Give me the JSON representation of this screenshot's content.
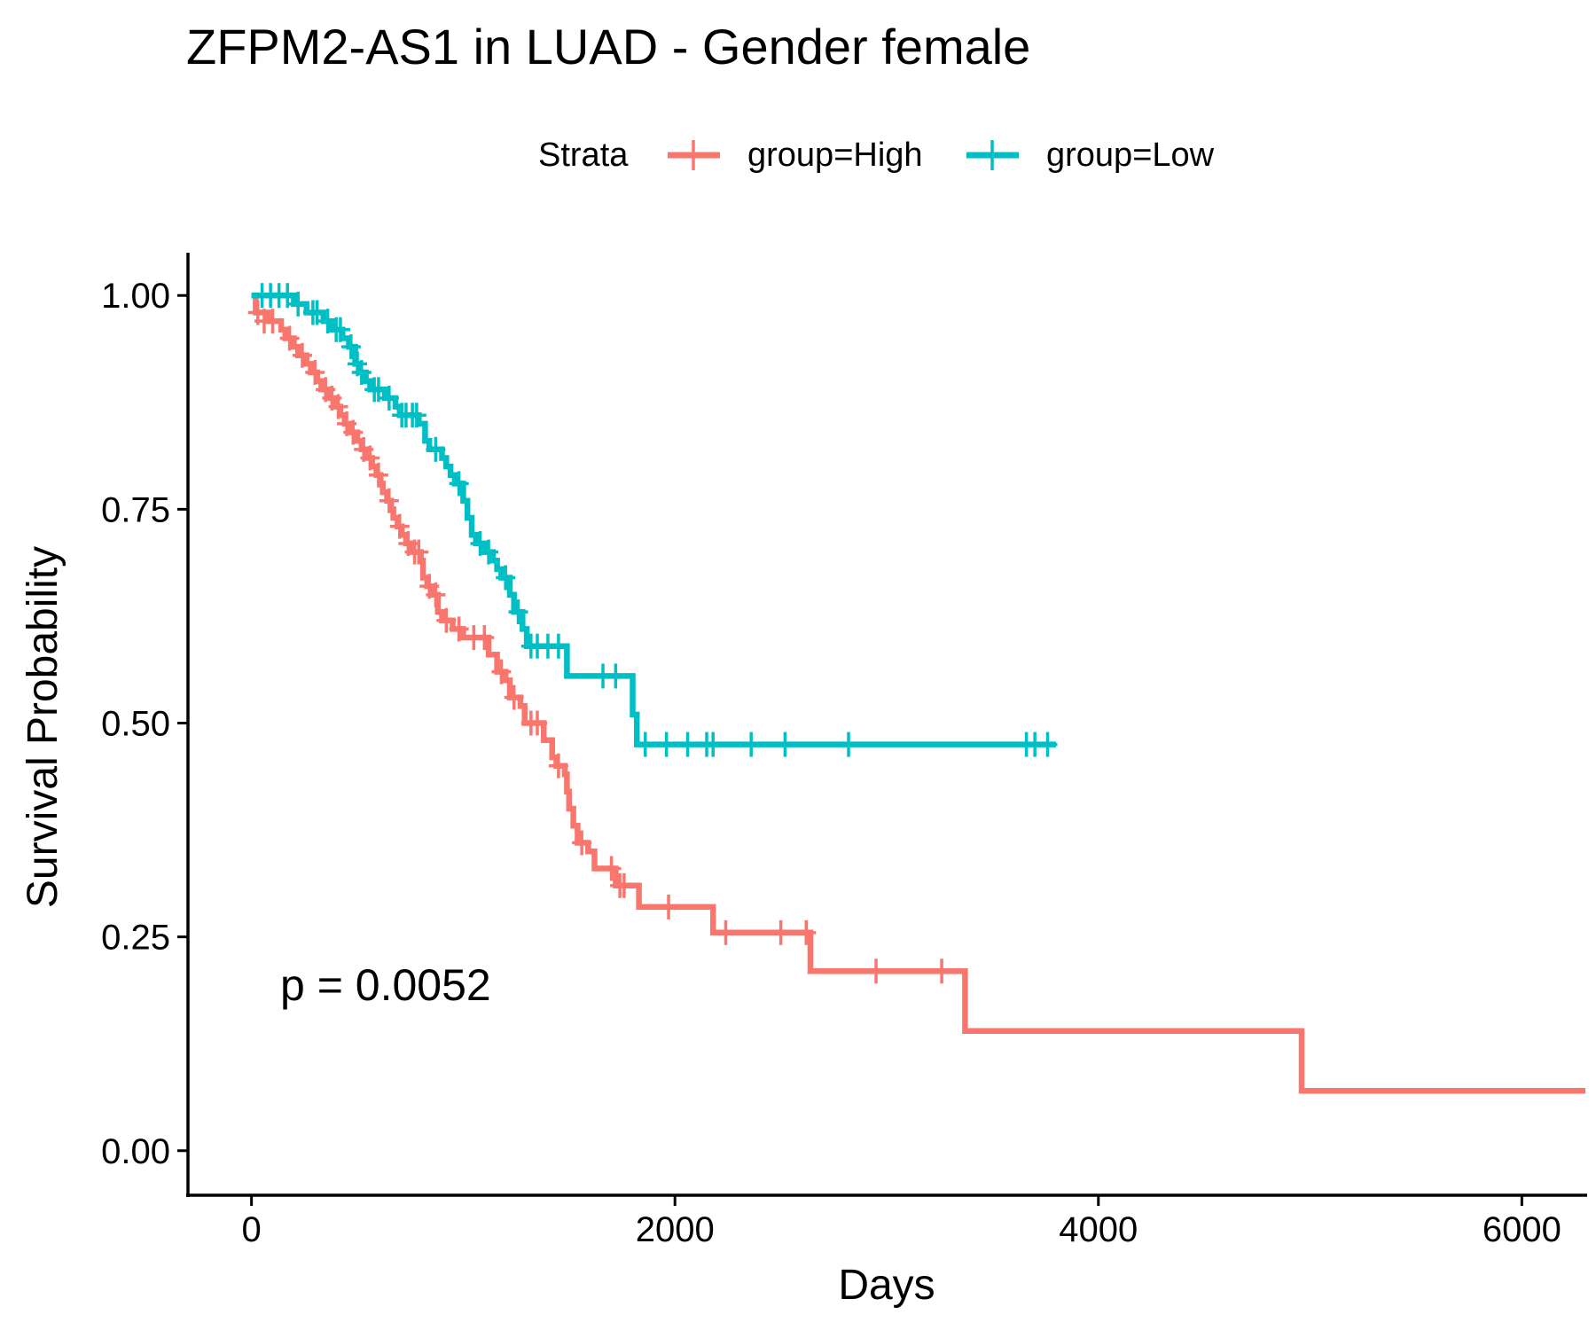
{
  "chart_data": {
    "type": "line",
    "title": "ZFPM2-AS1 in LUAD - Gender female",
    "xlabel": "Days",
    "ylabel": "Survival Probability",
    "xlim": [
      -300,
      6300
    ],
    "ylim": [
      -0.05,
      1.05
    ],
    "x_ticks": [
      0,
      2000,
      4000,
      6000
    ],
    "x_tick_labels": [
      "0",
      "2000",
      "4000",
      "6000"
    ],
    "y_ticks": [
      0,
      0.25,
      0.5,
      0.75,
      1.0
    ],
    "y_tick_labels": [
      "0.00",
      "0.25",
      "0.50",
      "0.75",
      "1.00"
    ],
    "grid": false,
    "legend": {
      "title": "Strata",
      "position": "top"
    },
    "annotation": "p = 0.0052",
    "series": [
      {
        "name": "group=High",
        "color": "#F8766D",
        "steps": [
          [
            0,
            1.0
          ],
          [
            20,
            0.98
          ],
          [
            80,
            0.97
          ],
          [
            140,
            0.96
          ],
          [
            160,
            0.95
          ],
          [
            200,
            0.94
          ],
          [
            220,
            0.93
          ],
          [
            260,
            0.92
          ],
          [
            280,
            0.91
          ],
          [
            310,
            0.9
          ],
          [
            330,
            0.89
          ],
          [
            360,
            0.88
          ],
          [
            400,
            0.87
          ],
          [
            420,
            0.86
          ],
          [
            440,
            0.85
          ],
          [
            470,
            0.84
          ],
          [
            500,
            0.83
          ],
          [
            520,
            0.82
          ],
          [
            550,
            0.81
          ],
          [
            570,
            0.8
          ],
          [
            590,
            0.79
          ],
          [
            610,
            0.78
          ],
          [
            620,
            0.77
          ],
          [
            640,
            0.76
          ],
          [
            660,
            0.75
          ],
          [
            670,
            0.74
          ],
          [
            690,
            0.73
          ],
          [
            710,
            0.72
          ],
          [
            730,
            0.71
          ],
          [
            760,
            0.7
          ],
          [
            800,
            0.69
          ],
          [
            810,
            0.67
          ],
          [
            830,
            0.66
          ],
          [
            860,
            0.65
          ],
          [
            880,
            0.63
          ],
          [
            900,
            0.62
          ],
          [
            950,
            0.61
          ],
          [
            1000,
            0.6
          ],
          [
            1120,
            0.58
          ],
          [
            1160,
            0.56
          ],
          [
            1200,
            0.55
          ],
          [
            1220,
            0.53
          ],
          [
            1270,
            0.52
          ],
          [
            1290,
            0.5
          ],
          [
            1380,
            0.48
          ],
          [
            1420,
            0.46
          ],
          [
            1440,
            0.45
          ],
          [
            1480,
            0.44
          ],
          [
            1490,
            0.42
          ],
          [
            1500,
            0.4
          ],
          [
            1520,
            0.38
          ],
          [
            1540,
            0.36
          ],
          [
            1590,
            0.35
          ],
          [
            1620,
            0.33
          ],
          [
            1720,
            0.31
          ],
          [
            1830,
            0.285
          ],
          [
            2180,
            0.255
          ],
          [
            2640,
            0.21
          ],
          [
            3370,
            0.14
          ],
          [
            4960,
            0.07
          ],
          [
            6300,
            0.07
          ]
        ],
        "censor_marks": [
          [
            30,
            0.98
          ],
          [
            60,
            0.97
          ],
          [
            100,
            0.97
          ],
          [
            180,
            0.95
          ],
          [
            240,
            0.93
          ],
          [
            300,
            0.91
          ],
          [
            350,
            0.89
          ],
          [
            380,
            0.88
          ],
          [
            410,
            0.87
          ],
          [
            450,
            0.85
          ],
          [
            480,
            0.84
          ],
          [
            530,
            0.82
          ],
          [
            560,
            0.81
          ],
          [
            600,
            0.79
          ],
          [
            650,
            0.76
          ],
          [
            700,
            0.73
          ],
          [
            740,
            0.71
          ],
          [
            770,
            0.7
          ],
          [
            790,
            0.7
          ],
          [
            840,
            0.66
          ],
          [
            870,
            0.65
          ],
          [
            920,
            0.62
          ],
          [
            980,
            0.61
          ],
          [
            1050,
            0.6
          ],
          [
            1100,
            0.6
          ],
          [
            1180,
            0.56
          ],
          [
            1240,
            0.53
          ],
          [
            1320,
            0.5
          ],
          [
            1350,
            0.5
          ],
          [
            1450,
            0.45
          ],
          [
            1560,
            0.36
          ],
          [
            1700,
            0.33
          ],
          [
            1740,
            0.31
          ],
          [
            1760,
            0.31
          ],
          [
            1970,
            0.285
          ],
          [
            2240,
            0.255
          ],
          [
            2500,
            0.255
          ],
          [
            2620,
            0.255
          ],
          [
            2950,
            0.21
          ],
          [
            3260,
            0.21
          ]
        ]
      },
      {
        "name": "group=Low",
        "color": "#00BFC4",
        "steps": [
          [
            0,
            1.0
          ],
          [
            200,
            0.99
          ],
          [
            260,
            0.98
          ],
          [
            340,
            0.97
          ],
          [
            380,
            0.96
          ],
          [
            430,
            0.95
          ],
          [
            460,
            0.94
          ],
          [
            490,
            0.92
          ],
          [
            510,
            0.91
          ],
          [
            540,
            0.9
          ],
          [
            560,
            0.89
          ],
          [
            630,
            0.88
          ],
          [
            680,
            0.87
          ],
          [
            700,
            0.86
          ],
          [
            790,
            0.85
          ],
          [
            820,
            0.83
          ],
          [
            840,
            0.82
          ],
          [
            900,
            0.81
          ],
          [
            920,
            0.8
          ],
          [
            940,
            0.79
          ],
          [
            960,
            0.78
          ],
          [
            1000,
            0.76
          ],
          [
            1020,
            0.74
          ],
          [
            1040,
            0.72
          ],
          [
            1060,
            0.71
          ],
          [
            1100,
            0.7
          ],
          [
            1140,
            0.69
          ],
          [
            1160,
            0.68
          ],
          [
            1180,
            0.67
          ],
          [
            1220,
            0.65
          ],
          [
            1240,
            0.63
          ],
          [
            1280,
            0.61
          ],
          [
            1300,
            0.59
          ],
          [
            1490,
            0.555
          ],
          [
            1800,
            0.51
          ],
          [
            1820,
            0.475
          ],
          [
            3800,
            0.475
          ]
        ],
        "censor_marks": [
          [
            50,
            1.0
          ],
          [
            90,
            1.0
          ],
          [
            130,
            1.0
          ],
          [
            170,
            1.0
          ],
          [
            220,
            0.99
          ],
          [
            290,
            0.98
          ],
          [
            310,
            0.98
          ],
          [
            360,
            0.97
          ],
          [
            400,
            0.96
          ],
          [
            420,
            0.96
          ],
          [
            470,
            0.94
          ],
          [
            500,
            0.92
          ],
          [
            520,
            0.91
          ],
          [
            580,
            0.89
          ],
          [
            600,
            0.89
          ],
          [
            650,
            0.88
          ],
          [
            710,
            0.86
          ],
          [
            730,
            0.86
          ],
          [
            760,
            0.86
          ],
          [
            780,
            0.86
          ],
          [
            870,
            0.82
          ],
          [
            980,
            0.78
          ],
          [
            1080,
            0.71
          ],
          [
            1120,
            0.7
          ],
          [
            1200,
            0.67
          ],
          [
            1260,
            0.63
          ],
          [
            1320,
            0.59
          ],
          [
            1350,
            0.59
          ],
          [
            1400,
            0.59
          ],
          [
            1450,
            0.59
          ],
          [
            1660,
            0.555
          ],
          [
            1720,
            0.555
          ],
          [
            1860,
            0.475
          ],
          [
            1960,
            0.475
          ],
          [
            2060,
            0.475
          ],
          [
            2150,
            0.475
          ],
          [
            2180,
            0.475
          ],
          [
            2360,
            0.475
          ],
          [
            2520,
            0.475
          ],
          [
            2820,
            0.475
          ],
          [
            3660,
            0.475
          ],
          [
            3700,
            0.475
          ],
          [
            3760,
            0.475
          ]
        ]
      }
    ]
  }
}
